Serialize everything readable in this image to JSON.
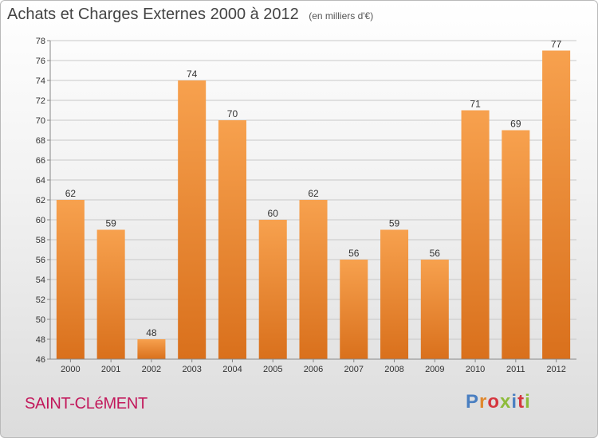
{
  "header": {
    "title": "Achats et Charges Externes 2000 à 2012",
    "subtitle": "(en milliers d'€)"
  },
  "commune": "SAINT-CLéMENT",
  "logo": {
    "text": "Proxiti"
  },
  "colors": {
    "bar_light": "#f7a14e",
    "bar_dark": "#d9701c",
    "grid": "#c8c8c8"
  },
  "chart_data": {
    "type": "bar",
    "title": "Achats et Charges Externes 2000 à 2012",
    "subtitle": "(en milliers d'€)",
    "categories": [
      "2000",
      "2001",
      "2002",
      "2003",
      "2004",
      "2005",
      "2006",
      "2007",
      "2008",
      "2009",
      "2010",
      "2011",
      "2012"
    ],
    "values": [
      62,
      59,
      48,
      74,
      70,
      60,
      62,
      56,
      59,
      56,
      71,
      69,
      77
    ],
    "ylim": [
      46,
      78
    ],
    "yticks": [
      46,
      48,
      50,
      52,
      54,
      56,
      58,
      60,
      62,
      64,
      66,
      68,
      70,
      72,
      74,
      76,
      78
    ],
    "grid": true,
    "xlabel": "",
    "ylabel": ""
  }
}
